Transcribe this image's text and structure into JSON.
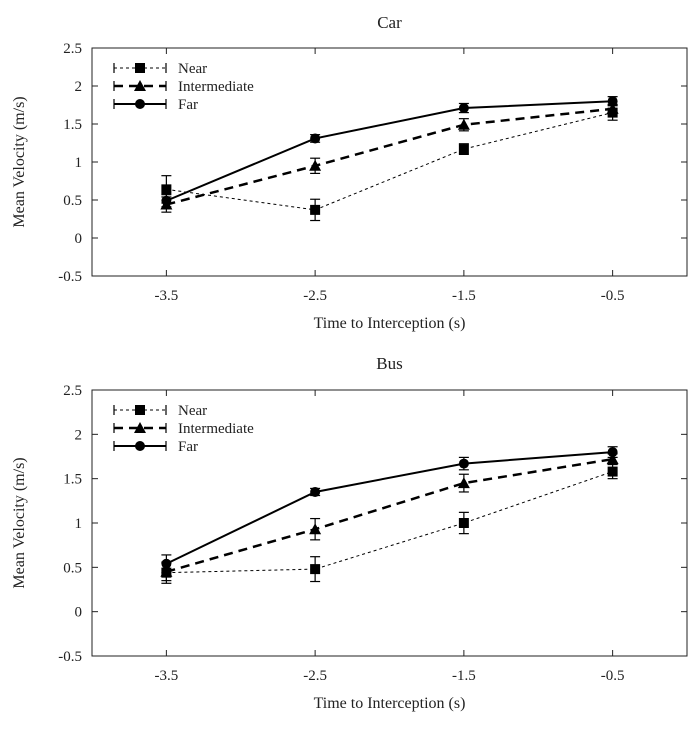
{
  "chart_data": [
    {
      "type": "line",
      "title": "Car",
      "xlabel": "Time to Interception (s)",
      "ylabel": "Mean Velocity (m/s)",
      "x": [
        -3.5,
        -2.5,
        -1.5,
        -0.5
      ],
      "xlim": [
        -4.0,
        0.0
      ],
      "ylim": [
        -0.5,
        2.5
      ],
      "xticks": [
        "-3.5",
        "-2.5",
        "-1.5",
        "-0.5"
      ],
      "yticks": [
        "-0.5",
        "0",
        "0.5",
        "1",
        "1.5",
        "2",
        "2.5"
      ],
      "grid": false,
      "legend_position": "top-left",
      "series": [
        {
          "name": "Near",
          "line": "dotted",
          "marker": "square",
          "values": [
            0.64,
            0.37,
            1.17,
            1.65
          ],
          "errors": [
            0.18,
            0.14,
            0.07,
            0.1
          ]
        },
        {
          "name": "Intermediate",
          "line": "dashed",
          "marker": "triangle",
          "values": [
            0.44,
            0.95,
            1.49,
            1.7
          ],
          "errors": [
            0.1,
            0.1,
            0.08,
            0.06
          ]
        },
        {
          "name": "Far",
          "line": "solid",
          "marker": "circle",
          "values": [
            0.49,
            1.31,
            1.71,
            1.8
          ],
          "errors": [
            0.08,
            0.05,
            0.06,
            0.06
          ]
        }
      ]
    },
    {
      "type": "line",
      "title": "Bus",
      "xlabel": "Time to Interception (s)",
      "ylabel": "Mean Velocity (m/s)",
      "x": [
        -3.5,
        -2.5,
        -1.5,
        -0.5
      ],
      "xlim": [
        -4.0,
        0.0
      ],
      "ylim": [
        -0.5,
        2.5
      ],
      "xticks": [
        "-3.5",
        "-2.5",
        "-1.5",
        "-0.5"
      ],
      "yticks": [
        "-0.5",
        "0",
        "0.5",
        "1",
        "1.5",
        "2",
        "2.5"
      ],
      "grid": false,
      "legend_position": "top-left",
      "series": [
        {
          "name": "Near",
          "line": "dotted",
          "marker": "square",
          "values": [
            0.44,
            0.48,
            1.0,
            1.58
          ],
          "errors": [
            0.12,
            0.14,
            0.12,
            0.08
          ]
        },
        {
          "name": "Intermediate",
          "line": "dashed",
          "marker": "triangle",
          "values": [
            0.45,
            0.93,
            1.45,
            1.72
          ],
          "errors": [
            0.1,
            0.12,
            0.1,
            0.06
          ]
        },
        {
          "name": "Far",
          "line": "solid",
          "marker": "circle",
          "values": [
            0.54,
            1.35,
            1.67,
            1.8
          ],
          "errors": [
            0.1,
            0.04,
            0.07,
            0.06
          ]
        }
      ]
    }
  ]
}
